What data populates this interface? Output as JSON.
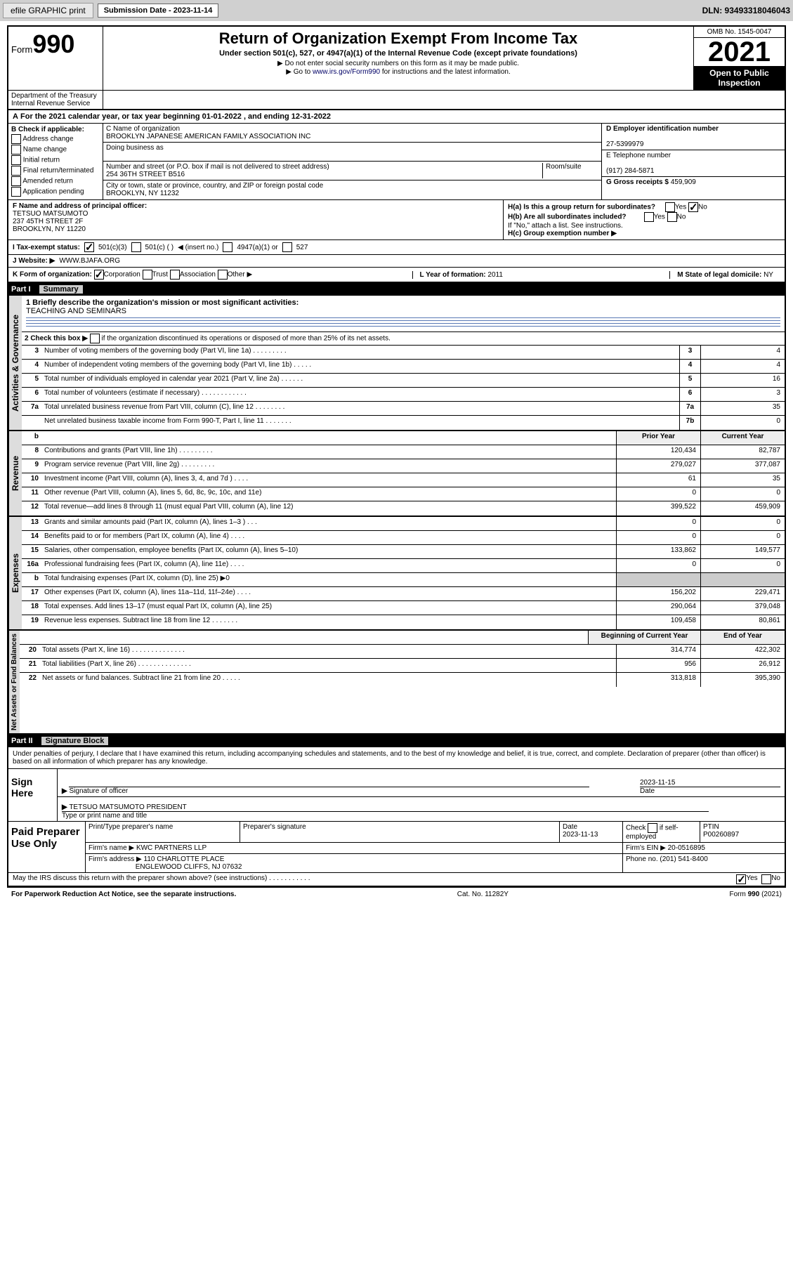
{
  "toolbar": {
    "efile": "efile GRAPHIC print",
    "sub_label": "Submission Date - 2023-11-14",
    "dln": "DLN: 93493318046043"
  },
  "header": {
    "form_word": "Form",
    "form_num": "990",
    "title": "Return of Organization Exempt From Income Tax",
    "sub1": "Under section 501(c), 527, or 4947(a)(1) of the Internal Revenue Code (except private foundations)",
    "sub2": "▶ Do not enter social security numbers on this form as it may be made public.",
    "sub3_pre": "▶ Go to ",
    "sub3_link": "www.irs.gov/Form990",
    "sub3_post": " for instructions and the latest information.",
    "omb": "OMB No. 1545-0047",
    "year": "2021",
    "inspection": "Open to Public Inspection",
    "dept": "Department of the Treasury",
    "irs": "Internal Revenue Service"
  },
  "line_a": "For the 2021 calendar year, or tax year beginning 01-01-2022   , and ending 12-31-2022",
  "box_b": {
    "label": "B Check if applicable:",
    "opts": [
      "Address change",
      "Name change",
      "Initial return",
      "Final return/terminated",
      "Amended return",
      "Application pending"
    ]
  },
  "box_c": {
    "name_label": "C Name of organization",
    "name": "BROOKLYN JAPANESE AMERICAN FAMILY ASSOCIATION INC",
    "dba_label": "Doing business as",
    "dba": "",
    "street_label": "Number and street (or P.O. box if mail is not delivered to street address)",
    "room_label": "Room/suite",
    "street": "254 36TH STREET B516",
    "city_label": "City or town, state or province, country, and ZIP or foreign postal code",
    "city": "BROOKLYN, NY  11232"
  },
  "box_d": {
    "label": "D Employer identification number",
    "val": "27-5399979"
  },
  "box_e": {
    "label": "E Telephone number",
    "val": "(917) 284-5871"
  },
  "box_g": {
    "label": "G Gross receipts $",
    "val": "459,909"
  },
  "box_f": {
    "label": "F  Name and address of principal officer:",
    "name": "TETSUO MATSUMOTO",
    "addr1": "237 45TH STREET 2F",
    "addr2": "BROOKLYN, NY  11220"
  },
  "box_h": {
    "ha": "H(a)  Is this a group return for subordinates?",
    "hb": "H(b)  Are all subordinates included?",
    "hb_note": "If \"No,\" attach a list. See instructions.",
    "hc": "H(c)  Group exemption number ▶",
    "yes": "Yes",
    "no": "No"
  },
  "box_i": {
    "label": "I    Tax-exempt status:",
    "o1": "501(c)(3)",
    "o2": "501(c) (  )",
    "o2b": "◀ (insert no.)",
    "o3": "4947(a)(1) or",
    "o4": "527"
  },
  "box_j": {
    "label": "J   Website: ▶",
    "val": "WWW.BJAFA.ORG"
  },
  "box_k": {
    "label": "K Form of organization:",
    "o1": "Corporation",
    "o2": "Trust",
    "o3": "Association",
    "o4": "Other ▶"
  },
  "box_l": {
    "label": "L Year of formation:",
    "val": "2011"
  },
  "box_m": {
    "label": "M State of legal domicile:",
    "val": "NY"
  },
  "parts": {
    "p1": "Part I",
    "p1_title": "Summary",
    "p2": "Part II",
    "p2_title": "Signature Block"
  },
  "mission": {
    "q1": "1   Briefly describe the organization's mission or most significant activities:",
    "text": "TEACHING AND SEMINARS",
    "q2_pre": "2   Check this box ▶",
    "q2_post": " if the organization discontinued its operations or disposed of more than 25% of its net assets."
  },
  "sidebars": {
    "gov": "Activities & Governance",
    "rev": "Revenue",
    "exp": "Expenses",
    "net": "Net Assets or Fund Balances"
  },
  "gov_rows": [
    {
      "n": "3",
      "d": "Number of voting members of the governing body (Part VI, line 1a)   .    .    .    .    .    .    .    .    .",
      "c": "3",
      "v": "4"
    },
    {
      "n": "4",
      "d": "Number of independent voting members of the governing body (Part VI, line 1b)    .    .    .    .    .",
      "c": "4",
      "v": "4"
    },
    {
      "n": "5",
      "d": "Total number of individuals employed in calendar year 2021 (Part V, line 2a)   .    .    .    .    .    .",
      "c": "5",
      "v": "16"
    },
    {
      "n": "6",
      "d": "Total number of volunteers (estimate if necessary)   .    .    .    .    .    .    .    .    .    .    .    .",
      "c": "6",
      "v": "3"
    },
    {
      "n": "7a",
      "d": "Total unrelated business revenue from Part VIII, column (C), line 12   .    .    .    .    .    .    .    .",
      "c": "7a",
      "v": "35"
    },
    {
      "n": "",
      "d": "Net unrelated business taxable income from Form 990-T, Part I, line 11   .    .    .    .    .    .    .",
      "c": "7b",
      "v": "0"
    }
  ],
  "two_col_hdr": {
    "b": "b",
    "prior": "Prior Year",
    "cur": "Current Year",
    "beg": "Beginning of Current Year",
    "end": "End of Year"
  },
  "rev_rows": [
    {
      "n": "8",
      "d": "Contributions and grants (Part VIII, line 1h)   .    .    .    .    .    .    .    .    .",
      "p": "120,434",
      "c": "82,787"
    },
    {
      "n": "9",
      "d": "Program service revenue (Part VIII, line 2g)   .    .    .    .    .    .    .    .    .",
      "p": "279,027",
      "c": "377,087"
    },
    {
      "n": "10",
      "d": "Investment income (Part VIII, column (A), lines 3, 4, and 7d )   .    .    .    .",
      "p": "61",
      "c": "35"
    },
    {
      "n": "11",
      "d": "Other revenue (Part VIII, column (A), lines 5, 6d, 8c, 9c, 10c, and 11e)",
      "p": "0",
      "c": "0"
    },
    {
      "n": "12",
      "d": "Total revenue—add lines 8 through 11 (must equal Part VIII, column (A), line 12)",
      "p": "399,522",
      "c": "459,909"
    }
  ],
  "exp_rows": [
    {
      "n": "13",
      "d": "Grants and similar amounts paid (Part IX, column (A), lines 1–3 )   .    .    .",
      "p": "0",
      "c": "0"
    },
    {
      "n": "14",
      "d": "Benefits paid to or for members (Part IX, column (A), line 4)   .    .    .    .",
      "p": "0",
      "c": "0"
    },
    {
      "n": "15",
      "d": "Salaries, other compensation, employee benefits (Part IX, column (A), lines 5–10)",
      "p": "133,862",
      "c": "149,577"
    },
    {
      "n": "16a",
      "d": "Professional fundraising fees (Part IX, column (A), line 11e)   .    .    .    .",
      "p": "0",
      "c": "0"
    },
    {
      "n": "b",
      "d": "Total fundraising expenses (Part IX, column (D), line 25) ▶0",
      "p": "",
      "c": ""
    },
    {
      "n": "17",
      "d": "Other expenses (Part IX, column (A), lines 11a–11d, 11f–24e)   .    .    .    .",
      "p": "156,202",
      "c": "229,471"
    },
    {
      "n": "18",
      "d": "Total expenses. Add lines 13–17 (must equal Part IX, column (A), line 25)",
      "p": "290,064",
      "c": "379,048"
    },
    {
      "n": "19",
      "d": "Revenue less expenses. Subtract line 18 from line 12  .    .    .    .    .    .    .",
      "p": "109,458",
      "c": "80,861"
    }
  ],
  "net_rows": [
    {
      "n": "20",
      "d": "Total assets (Part X, line 16)   .    .    .    .    .    .    .    .    .    .    .    .    .    .",
      "p": "314,774",
      "c": "422,302"
    },
    {
      "n": "21",
      "d": "Total liabilities (Part X, line 26)   .    .    .    .    .    .    .    .    .    .    .    .    .    .",
      "p": "956",
      "c": "26,912"
    },
    {
      "n": "22",
      "d": "Net assets or fund balances. Subtract line 21 from line 20   .    .    .    .    .",
      "p": "313,818",
      "c": "395,390"
    }
  ],
  "sig": {
    "decl": "Under penalties of perjury, I declare that I have examined this return, including accompanying schedules and statements, and to the best of my knowledge and belief, it is true, correct, and complete. Declaration of preparer (other than officer) is based on all information of which preparer has any knowledge.",
    "sign_here": "Sign Here",
    "sig_label": "Signature of officer",
    "date_val": "2023-11-15",
    "date_label": "Date",
    "officer": "TETSUO MATSUMOTO  PRESIDENT",
    "officer_label": "Type or print name and title"
  },
  "prep": {
    "title": "Paid Preparer Use Only",
    "h1": "Print/Type preparer's name",
    "h2": "Preparer's signature",
    "h3": "Date",
    "h4": "Check",
    "h4b": "if self-employed",
    "h5": "PTIN",
    "date": "2023-11-13",
    "ptin": "P00260897",
    "firm_label": "Firm's name   ▶",
    "firm": "KWC PARTNERS LLP",
    "ein_label": "Firm's EIN ▶",
    "ein": "20-0516895",
    "addr_label": "Firm's address ▶",
    "addr1": "110 CHARLOTTE PLACE",
    "addr2": "ENGLEWOOD CLIFFS, NJ  07632",
    "phone_label": "Phone no.",
    "phone": "(201) 541-8400"
  },
  "discuss": {
    "q": "May the IRS discuss this return with the preparer shown above? (see instructions)   .     .    .    .    .    .    .    .    .    .    .",
    "yes": "Yes",
    "no": "No"
  },
  "footer": {
    "l": "For Paperwork Reduction Act Notice, see the separate instructions.",
    "m": "Cat. No. 11282Y",
    "r": "Form 990 (2021)"
  }
}
